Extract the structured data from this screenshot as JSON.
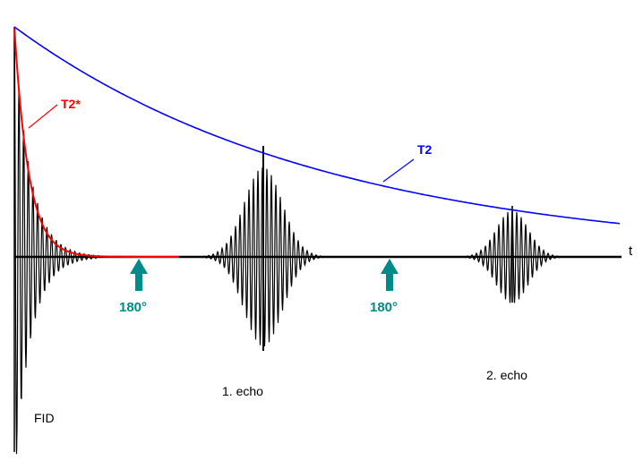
{
  "labels": {
    "t2_star": "T2*",
    "t2": "T2",
    "axis_t": "t",
    "pulse_1": "180°",
    "pulse_2": "180°",
    "echo_1": "1. echo",
    "echo_2": "2. echo",
    "fid": "FID"
  },
  "colors": {
    "signal": "#000000",
    "t2_star_curve": "#ff0000",
    "t2_curve": "#0000ff",
    "pulse_arrow": "#008b8b"
  },
  "icons": {
    "pulse_marker": "up-arrow-icon"
  }
}
